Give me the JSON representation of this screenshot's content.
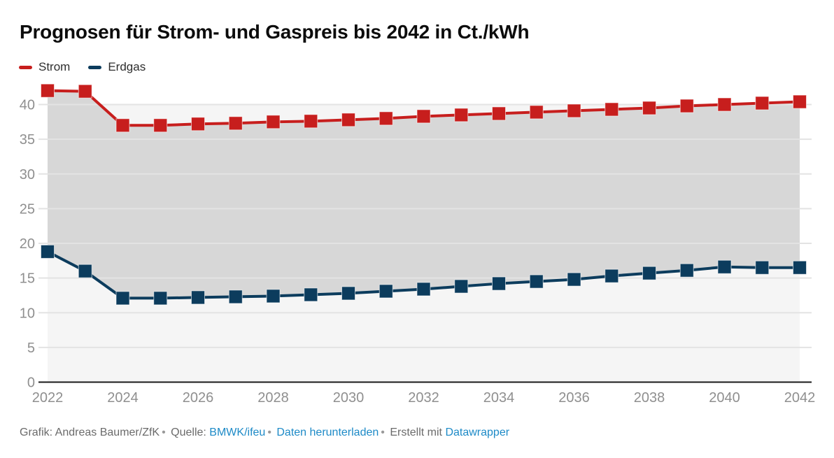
{
  "header": {
    "title": "Prognosen für Strom- und Gaspreis bis 2042 in Ct./kWh"
  },
  "chart_data": {
    "type": "line",
    "title": "Prognosen für Strom- und Gaspreis bis 2042 in Ct./kWh",
    "unit": "Ct./kWh",
    "x": [
      2022,
      2023,
      2024,
      2025,
      2026,
      2027,
      2028,
      2029,
      2030,
      2031,
      2032,
      2033,
      2034,
      2035,
      2036,
      2037,
      2038,
      2039,
      2040,
      2041,
      2042
    ],
    "series": [
      {
        "name": "Strom",
        "color": "#c71e1d",
        "values": [
          42.0,
          41.9,
          37.0,
          37.0,
          37.2,
          37.3,
          37.5,
          37.6,
          37.8,
          38.0,
          38.3,
          38.5,
          38.7,
          38.9,
          39.1,
          39.3,
          39.5,
          39.8,
          40.0,
          40.2,
          40.4
        ]
      },
      {
        "name": "Erdgas",
        "color": "#0c3c5d",
        "values": [
          18.8,
          16.0,
          12.1,
          12.1,
          12.2,
          12.3,
          12.4,
          12.6,
          12.8,
          13.1,
          13.4,
          13.8,
          14.2,
          14.5,
          14.8,
          15.3,
          15.7,
          16.1,
          16.6,
          16.5,
          16.5
        ]
      }
    ],
    "y_ticks": [
      0,
      5,
      10,
      15,
      20,
      25,
      30,
      35,
      40
    ],
    "x_tick_labels": [
      "2022",
      "2024",
      "2026",
      "2028",
      "2030",
      "2032",
      "2034",
      "2036",
      "2038",
      "2040",
      "2042"
    ],
    "ylim": [
      0,
      43
    ],
    "grid": true,
    "legend_position": "top-left",
    "marker": "square",
    "band_between_series": true,
    "colors": {
      "band": "#d7d7d7",
      "plot_background": "#f5f5f5",
      "gridline": "#e3e3e3",
      "axis_line": "#1a1a1a",
      "axis_label": "#8f8f8f"
    }
  },
  "footer": {
    "credit": "Grafik: Andreas Baumer/ZfK",
    "separator": "•",
    "source_label": "Quelle:",
    "source_link": "BMWK/ifeu",
    "download_link": "Daten herunterladen",
    "made_with": "Erstellt mit",
    "tool_link": "Datawrapper",
    "link_color": "#1d8ac7"
  }
}
